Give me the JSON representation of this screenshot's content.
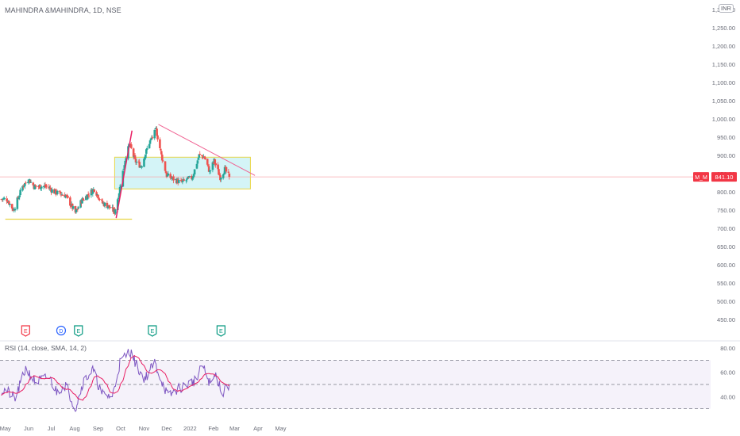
{
  "header": {
    "symbol_title": "MAHINDRA &MAHINDRA, 1D, NSE",
    "currency": "INR"
  },
  "price_label": {
    "symbol": "M_M",
    "value": "841.10",
    "color": "#f23645"
  },
  "rsi": {
    "title": "RSI (14, close, SMA, 14, 2)",
    "upper": 70,
    "middle": 50,
    "lower": 30,
    "axis_ticks": [
      "80.00",
      "60.00",
      "40.00"
    ]
  },
  "earnings_markers": [
    {
      "label": "E",
      "date": "2021-05-28",
      "color": "#f23645"
    },
    {
      "label": "D",
      "date": "2021-07-14",
      "color": "#2962ff"
    },
    {
      "label": "E",
      "date": "2021-08-06",
      "color": "#089981"
    },
    {
      "label": "E",
      "date": "2021-11-12",
      "color": "#089981"
    },
    {
      "label": "E",
      "date": "2022-02-11",
      "color": "#089981"
    }
  ],
  "colors": {
    "up": "#26a69a",
    "down": "#ef5350",
    "rsi_line": "#7e57c2",
    "rsi_ma": "#e91e63",
    "zone_fill": "#c9f1f5",
    "zone_border": "#e8d646",
    "trendline": "#f06292",
    "support": "#e8d646"
  },
  "chart_data": {
    "type": "candlestick",
    "title": "MAHINDRA &MAHINDRA, 1D, NSE",
    "y_ticks": [
      "1,300.00",
      "1,250.00",
      "1,200.00",
      "1,150.00",
      "1,100.00",
      "1,050.00",
      "1,000.00",
      "950.00",
      "900.00",
      "850.00",
      "800.00",
      "750.00",
      "700.00",
      "650.00",
      "600.00",
      "550.00",
      "500.00",
      "450.00"
    ],
    "x_ticks": [
      "May",
      "Jun",
      "Jul",
      "Aug",
      "Sep",
      "Oct",
      "Nov",
      "Dec",
      "2022",
      "Feb",
      "Mar",
      "Apr",
      "May"
    ],
    "last_price": 841.1,
    "anchors": [
      {
        "date": "2021-05-03",
        "close": 780
      },
      {
        "date": "2021-05-12",
        "close": 750
      },
      {
        "date": "2021-05-24",
        "close": 815
      },
      {
        "date": "2021-06-01",
        "close": 835
      },
      {
        "date": "2021-06-08",
        "close": 815
      },
      {
        "date": "2021-06-25",
        "close": 815
      },
      {
        "date": "2021-07-05",
        "close": 800
      },
      {
        "date": "2021-07-20",
        "close": 790
      },
      {
        "date": "2021-08-02",
        "close": 742
      },
      {
        "date": "2021-08-10",
        "close": 775
      },
      {
        "date": "2021-08-20",
        "close": 795
      },
      {
        "date": "2021-08-27",
        "close": 808
      },
      {
        "date": "2021-09-06",
        "close": 770
      },
      {
        "date": "2021-09-15",
        "close": 760
      },
      {
        "date": "2021-09-23",
        "close": 745
      },
      {
        "date": "2021-09-29",
        "close": 800
      },
      {
        "date": "2021-10-08",
        "close": 900
      },
      {
        "date": "2021-10-13",
        "close": 930
      },
      {
        "date": "2021-10-20",
        "close": 885
      },
      {
        "date": "2021-10-28",
        "close": 870
      },
      {
        "date": "2021-11-08",
        "close": 935
      },
      {
        "date": "2021-11-17",
        "close": 970
      },
      {
        "date": "2021-11-24",
        "close": 900
      },
      {
        "date": "2021-12-01",
        "close": 845
      },
      {
        "date": "2021-12-10",
        "close": 835
      },
      {
        "date": "2021-12-20",
        "close": 825
      },
      {
        "date": "2022-01-04",
        "close": 840
      },
      {
        "date": "2022-01-13",
        "close": 900
      },
      {
        "date": "2022-01-20",
        "close": 895
      },
      {
        "date": "2022-01-27",
        "close": 855
      },
      {
        "date": "2022-02-02",
        "close": 885
      },
      {
        "date": "2022-02-10",
        "close": 840
      },
      {
        "date": "2022-02-16",
        "close": 862
      },
      {
        "date": "2022-02-22",
        "close": 841
      }
    ],
    "zone": {
      "from": "2021-09-23",
      "to": "2022-03-22",
      "low": 808,
      "high": 895
    },
    "support_line": {
      "from": "2021-05-01",
      "to": "2021-10-16",
      "value": 725
    },
    "rising_trendline": [
      {
        "date": "2021-09-25",
        "value": 728
      },
      {
        "date": "2021-10-16",
        "value": 968
      }
    ],
    "falling_trendline": [
      {
        "date": "2021-11-20",
        "value": 985
      },
      {
        "date": "2022-03-28",
        "value": 845
      }
    ],
    "rsi_anchors": [
      {
        "date": "2021-05-03",
        "value": 45
      },
      {
        "date": "2021-05-14",
        "value": 38
      },
      {
        "date": "2021-05-28",
        "value": 63
      },
      {
        "date": "2021-06-10",
        "value": 52
      },
      {
        "date": "2021-06-28",
        "value": 56
      },
      {
        "date": "2021-07-08",
        "value": 44
      },
      {
        "date": "2021-07-20",
        "value": 50
      },
      {
        "date": "2021-08-02",
        "value": 30
      },
      {
        "date": "2021-08-12",
        "value": 52
      },
      {
        "date": "2021-08-25",
        "value": 62
      },
      {
        "date": "2021-09-06",
        "value": 42
      },
      {
        "date": "2021-09-20",
        "value": 40
      },
      {
        "date": "2021-09-30",
        "value": 68
      },
      {
        "date": "2021-10-13",
        "value": 78
      },
      {
        "date": "2021-10-25",
        "value": 62
      },
      {
        "date": "2021-11-02",
        "value": 55
      },
      {
        "date": "2021-11-15",
        "value": 68
      },
      {
        "date": "2021-11-25",
        "value": 52
      },
      {
        "date": "2021-12-03",
        "value": 40
      },
      {
        "date": "2021-12-15",
        "value": 46
      },
      {
        "date": "2021-12-28",
        "value": 50
      },
      {
        "date": "2022-01-10",
        "value": 54
      },
      {
        "date": "2022-01-17",
        "value": 66
      },
      {
        "date": "2022-01-28",
        "value": 50
      },
      {
        "date": "2022-02-04",
        "value": 58
      },
      {
        "date": "2022-02-14",
        "value": 42
      },
      {
        "date": "2022-02-18",
        "value": 52
      },
      {
        "date": "2022-02-22",
        "value": 46
      }
    ]
  }
}
